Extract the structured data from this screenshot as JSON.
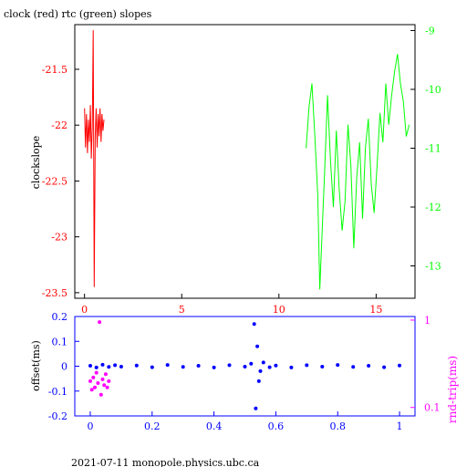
{
  "colors": {
    "clock": "#ff0000",
    "rtc": "#00ff00",
    "offset": "#0000ff",
    "rtt": "#ff00ff",
    "frame": "#000000"
  },
  "footer": "2021-07-11 monopole.physics.ubc.ca",
  "chart_data": [
    {
      "type": "line",
      "title": "clock (red) rtc (green) slopes",
      "xlabel": "",
      "ylabel": "clockslope",
      "y2label": "",
      "xlim": [
        -0.5,
        17
      ],
      "ylim": [
        -23.55,
        -21.1
      ],
      "y2lim": [
        -13.55,
        -8.9
      ],
      "x_ticks": [
        0,
        5,
        10,
        15
      ],
      "y_ticks": [
        -21.5,
        -22,
        -22.5,
        -23,
        -23.5
      ],
      "y2_ticks": [
        -9,
        -10,
        -11,
        -12,
        -13
      ],
      "x_tick_labels": [
        "0",
        "5",
        "10",
        "15"
      ],
      "y_tick_labels": [
        "-21.5",
        "-22",
        "-22.5",
        "-23",
        "-23.5"
      ],
      "y2_tick_labels": [
        "-9",
        "-10",
        "-11",
        "-12",
        "-13"
      ],
      "series": [
        {
          "name": "clock",
          "axis": "left",
          "x": [
            0.0,
            0.05,
            0.1,
            0.15,
            0.2,
            0.25,
            0.3,
            0.35,
            0.4,
            0.45,
            0.5,
            0.55,
            0.6,
            0.65,
            0.7,
            0.75,
            0.8,
            0.85,
            0.9,
            0.95,
            1.0
          ],
          "y": [
            -21.85,
            -22.2,
            -21.9,
            -22.25,
            -21.95,
            -22.15,
            -21.82,
            -22.3,
            -22.0,
            -21.15,
            -23.45,
            -22.1,
            -21.85,
            -22.2,
            -21.9,
            -22.1,
            -21.85,
            -22.15,
            -21.9,
            -22.05,
            -21.95
          ]
        },
        {
          "name": "rtc",
          "axis": "right",
          "x": [
            11.4,
            11.55,
            11.7,
            11.85,
            12.0,
            12.1,
            12.2,
            12.35,
            12.5,
            12.65,
            12.8,
            12.95,
            13.1,
            13.25,
            13.4,
            13.55,
            13.7,
            13.85,
            14.0,
            14.15,
            14.3,
            14.45,
            14.6,
            14.75,
            14.9,
            15.05,
            15.2,
            15.35,
            15.5,
            15.65,
            15.8,
            15.95,
            16.1,
            16.25,
            16.4,
            16.55,
            16.7
          ],
          "y": [
            -11.0,
            -10.3,
            -9.9,
            -10.8,
            -11.8,
            -13.4,
            -12.6,
            -11.4,
            -10.1,
            -11.2,
            -12.0,
            -10.7,
            -11.7,
            -12.4,
            -11.9,
            -10.6,
            -11.3,
            -12.7,
            -11.5,
            -10.9,
            -12.2,
            -11.0,
            -10.5,
            -11.6,
            -12.1,
            -11.3,
            -10.4,
            -10.9,
            -9.9,
            -10.6,
            -10.1,
            -9.7,
            -9.4,
            -9.9,
            -10.2,
            -10.8,
            -10.6
          ]
        }
      ]
    },
    {
      "type": "scatter",
      "title": "",
      "xlabel": "",
      "ylabel": "offset(ms)",
      "y2label": "rnd-trip(ms)",
      "y2_scale": "log",
      "xlim": [
        -0.05,
        1.05
      ],
      "ylim": [
        -0.2,
        0.2
      ],
      "y2lim": [
        0.08,
        1.1
      ],
      "x_ticks": [
        0,
        0.2,
        0.4,
        0.6,
        0.8,
        1
      ],
      "y_ticks": [
        0.2,
        0.1,
        0,
        -0.1,
        -0.2
      ],
      "y2_ticks": [
        1,
        0.1
      ],
      "x_tick_labels": [
        "0",
        "0.2",
        "0.4",
        "0.6",
        "0.8",
        "1"
      ],
      "y_tick_labels": [
        "0.2",
        "0.1",
        "0",
        "-0.1",
        "-0.2"
      ],
      "y2_tick_labels": [
        "1",
        "0.1"
      ],
      "series": [
        {
          "name": "offset",
          "axis": "left",
          "x": [
            0.0,
            0.02,
            0.04,
            0.06,
            0.08,
            0.1,
            0.15,
            0.2,
            0.25,
            0.3,
            0.35,
            0.4,
            0.45,
            0.5,
            0.52,
            0.53,
            0.535,
            0.54,
            0.545,
            0.55,
            0.56,
            0.58,
            0.6,
            0.65,
            0.7,
            0.75,
            0.8,
            0.85,
            0.9,
            0.95,
            1.0
          ],
          "y": [
            0.002,
            -0.005,
            0.006,
            -0.003,
            0.004,
            -0.002,
            0.003,
            -0.004,
            0.005,
            -0.003,
            0.002,
            -0.005,
            0.004,
            -0.002,
            0.01,
            0.17,
            -0.17,
            0.08,
            -0.06,
            -0.02,
            0.015,
            -0.004,
            0.003,
            -0.005,
            0.004,
            -0.002,
            0.005,
            -0.003,
            0.002,
            -0.004,
            0.003
          ]
        },
        {
          "name": "rnd-trip",
          "axis": "right",
          "x": [
            0.0,
            0.005,
            0.01,
            0.015,
            0.02,
            0.025,
            0.03,
            0.035,
            0.04,
            0.045,
            0.05,
            0.055,
            0.06
          ],
          "y": [
            0.2,
            0.16,
            0.22,
            0.17,
            0.25,
            0.19,
            0.95,
            0.14,
            0.21,
            0.18,
            0.24,
            0.17,
            0.2
          ]
        }
      ]
    }
  ]
}
